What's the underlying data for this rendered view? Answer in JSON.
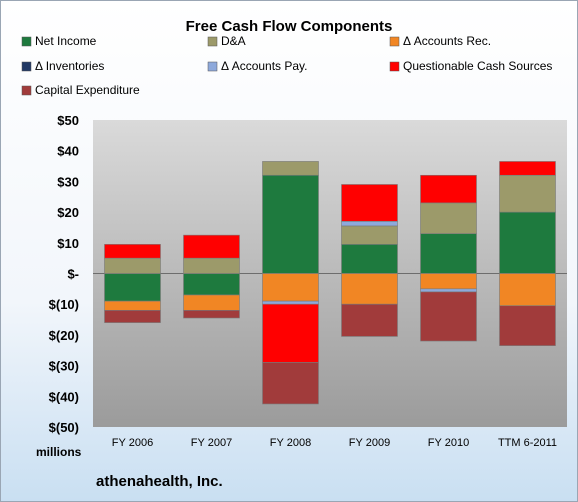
{
  "chart_data": {
    "type": "bar",
    "stacked": true,
    "title": "Free Cash Flow Components",
    "categories": [
      "FY 2006",
      "FY 2007",
      "FY 2008",
      "FY 2009",
      "FY 2010",
      "TTM 6-2011"
    ],
    "y_tick_labels": [
      "$50",
      "$40",
      "$30",
      "$20",
      "$10",
      "$-",
      "$(10)",
      "$(20)",
      "$(30)",
      "$(40)",
      "$(50)"
    ],
    "ylim": [
      -50,
      50
    ],
    "y_unit_label": "millions",
    "grid": false,
    "legend_position": "top",
    "series": [
      {
        "name": "Net Income",
        "color": "#1e7a3e",
        "values": [
          -9,
          -7,
          32,
          9.5,
          13,
          20
        ]
      },
      {
        "name": "D&A",
        "color": "#9c9a6a",
        "values": [
          5,
          5,
          4.5,
          6,
          10,
          12
        ]
      },
      {
        "name": "Δ Accounts Rec.",
        "color": "#f18624",
        "values": [
          -3,
          -5,
          -9,
          -10,
          -5,
          -10.5
        ]
      },
      {
        "name": "Δ Inventories",
        "color": "#203864",
        "values": [
          0,
          0,
          0,
          0,
          0,
          0
        ]
      },
      {
        "name": "Δ Accounts Pay.",
        "color": "#8ea9db",
        "values": [
          0,
          0,
          -1,
          1.5,
          -1,
          0
        ]
      },
      {
        "name": "Questionable Cash Sources",
        "color": "#ff0000",
        "values": [
          4.5,
          7.5,
          -19,
          12,
          9,
          4.5
        ]
      },
      {
        "name": "Capital Expenditure",
        "color": "#a13b3b",
        "values": [
          -4,
          -2.5,
          -13.5,
          -10.5,
          -16,
          -13
        ]
      }
    ]
  },
  "footer": {
    "company": "athenahealth, Inc."
  }
}
